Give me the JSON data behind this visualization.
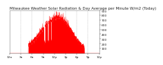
{
  "title": "Milwaukee Weather Solar Radiation & Day Average per Minute W/m2 (Today)",
  "bg_color": "#ffffff",
  "plot_bg_color": "#ffffff",
  "bar_color": "#ff0000",
  "grid_color": "#999999",
  "ylim": [
    0,
    900
  ],
  "yticks": [
    100,
    200,
    300,
    400,
    500,
    600,
    700,
    800,
    900
  ],
  "title_fontsize": 4.0,
  "tick_fontsize": 3.2,
  "num_points": 1440,
  "xgrid_positions": [
    0,
    180,
    360,
    540,
    720,
    900,
    1080,
    1260,
    1440
  ]
}
